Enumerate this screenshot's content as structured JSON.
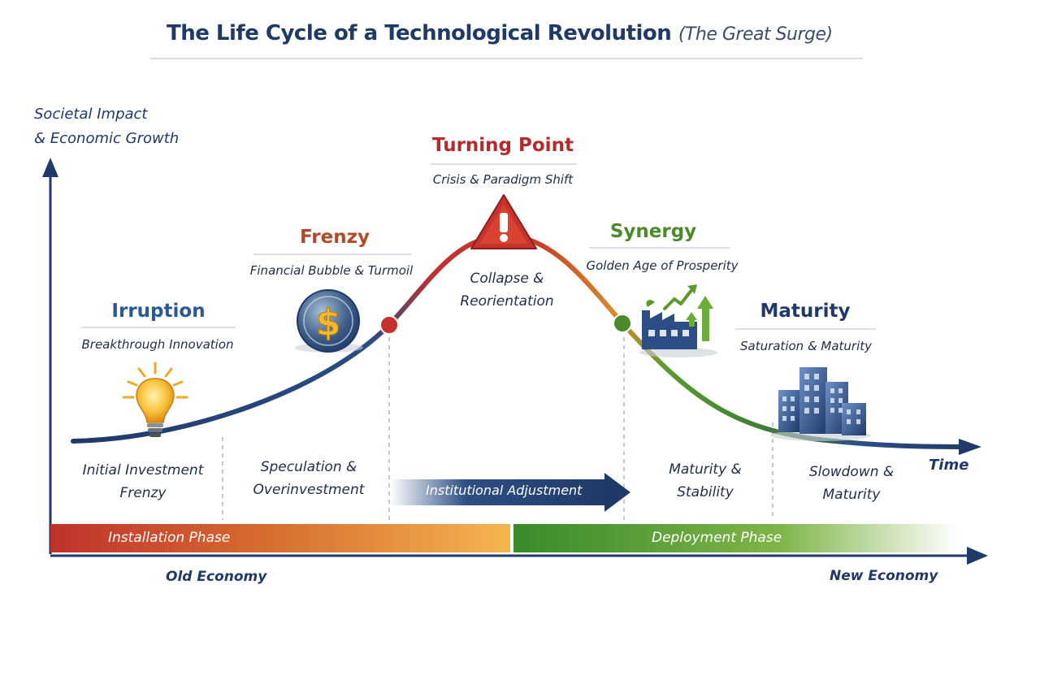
{
  "title": {
    "main": "The Life Cycle of a Technological Revolution",
    "sub": "(The Great Surge)"
  },
  "axes": {
    "y_label_line1": "Societal Impact",
    "y_label_line2": "& Economic Growth",
    "x_label": "Time"
  },
  "stages": {
    "irruption": {
      "title": "Irruption",
      "subtitle": "Breakthrough Innovation",
      "color": "#2a5a95"
    },
    "frenzy": {
      "title": "Frenzy",
      "subtitle": "Financial Bubble & Turmoil",
      "color": "#b04a2a"
    },
    "turning_point": {
      "title": "Turning Point",
      "subtitle": "Crisis & Paradigm Shift",
      "color": "#b52a2a"
    },
    "synergy": {
      "title": "Synergy",
      "subtitle": "Golden Age of Prosperity",
      "color": "#4a8a2a"
    },
    "maturity": {
      "title": "Maturity",
      "subtitle": "Saturation & Maturity",
      "color": "#1f3a68"
    }
  },
  "peak_note": {
    "line1": "Collapse &",
    "line2": "Reorientation"
  },
  "bottom_notes": [
    {
      "line1": "Initial Investment",
      "line2": "Frenzy"
    },
    {
      "line1": "Speculation &",
      "line2": "Overinvestment"
    },
    {
      "line1": "Maturity &",
      "line2": "Stability"
    },
    {
      "line1": "Slowdown &",
      "line2": "Maturity"
    }
  ],
  "adjustment_arrow": {
    "label": "Institutional Adjustment"
  },
  "phases": {
    "installation": {
      "label": "Installation Phase"
    },
    "deployment": {
      "label": "Deployment Phase"
    }
  },
  "economy": {
    "old": "Old Economy",
    "new": "New Economy"
  },
  "icons": [
    "lightbulb-icon",
    "dollar-coin-icon",
    "warning-triangle-icon",
    "factory-growth-icon",
    "city-buildings-icon"
  ]
}
